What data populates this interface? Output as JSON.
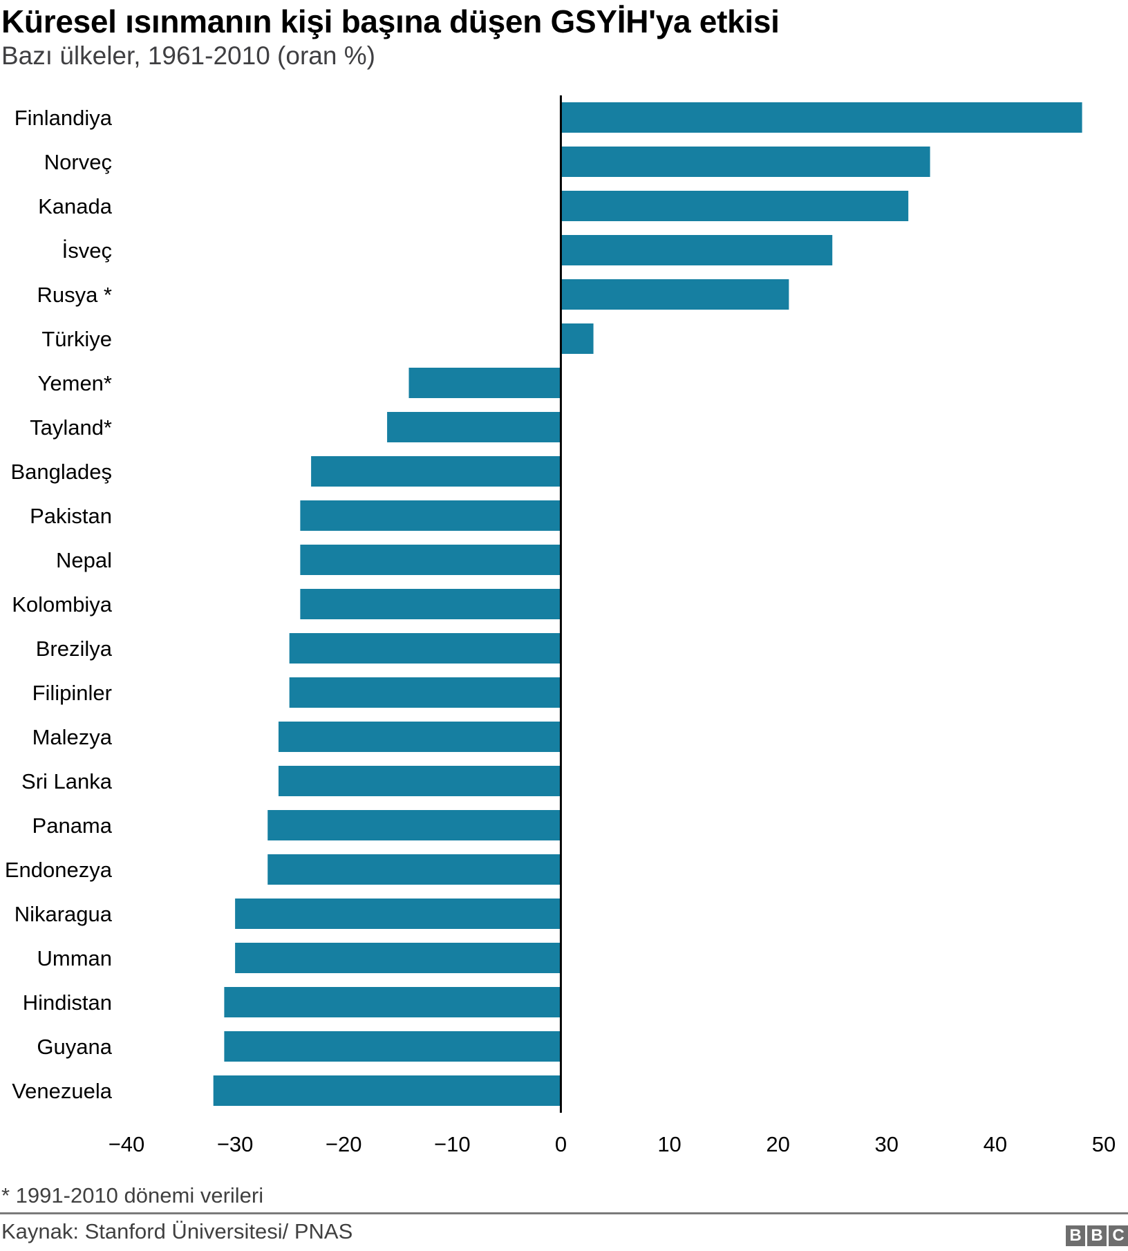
{
  "chart_data": {
    "type": "bar",
    "orientation": "horizontal",
    "title": "Küresel ısınmanın kişi başına düşen GSYİH'ya etkisi",
    "subtitle": "Bazı ülkeler, 1961-2010 (oran %)",
    "xlabel": "",
    "ylabel": "",
    "xlim": [
      -40,
      50
    ],
    "xticks": [
      -40,
      -30,
      -20,
      -10,
      0,
      10,
      20,
      30,
      40,
      50
    ],
    "xtick_labels": [
      "−40",
      "−30",
      "−20",
      "−10",
      "0",
      "10",
      "20",
      "30",
      "40",
      "50"
    ],
    "grid": false,
    "bar_color": "#167fa1",
    "categories": [
      "Finlandiya",
      "Norveç",
      "Kanada",
      "İsveç",
      "Rusya *",
      "Türkiye",
      "Yemen*",
      "Tayland*",
      "Bangladeş",
      "Pakistan",
      "Nepal",
      "Kolombiya",
      "Brezilya",
      "Filipinler",
      "Malezya",
      "Sri Lanka",
      "Panama",
      "Endonezya",
      "Nikaragua",
      "Umman",
      "Hindistan",
      "Guyana",
      "Venezuela"
    ],
    "values": [
      48,
      34,
      32,
      25,
      21,
      3,
      -14,
      -16,
      -23,
      -24,
      -24,
      -24,
      -25,
      -25,
      -26,
      -26,
      -27,
      -27,
      -30,
      -30,
      -31,
      -31,
      -32
    ]
  },
  "header": {
    "title": "Küresel ısınmanın kişi başına düşen GSYİH'ya etkisi",
    "subtitle": "Bazı ülkeler, 1961-2010 (oran %)"
  },
  "footer": {
    "footnote": "* 1991-2010 dönemi verileri",
    "source": "Kaynak: Stanford Üniversitesi/ PNAS",
    "logo_letters": [
      "B",
      "B",
      "C"
    ]
  }
}
